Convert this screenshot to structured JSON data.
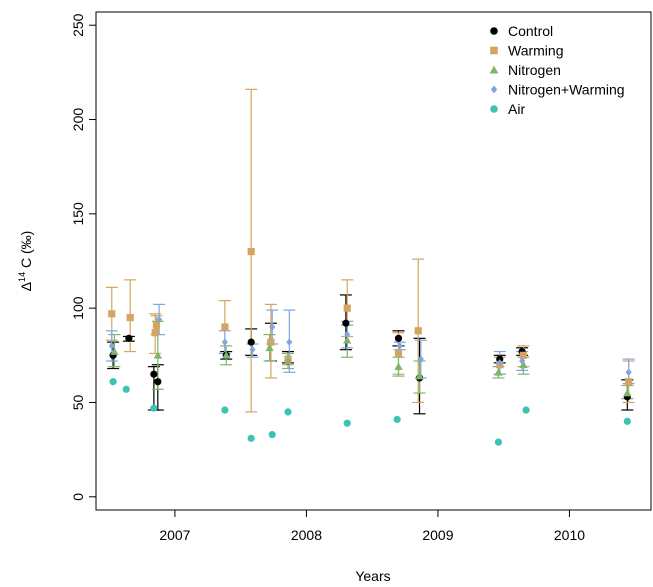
{
  "chart_data": {
    "type": "scatter",
    "xlabel": "Years",
    "ylabel": "Δ14C (‰)",
    "ylabel_parts": {
      "delta": "Δ",
      "superscript": "14",
      "rest": " C (‰)"
    },
    "x_unit": "decimal year",
    "xlim": [
      2006.4,
      2010.62
    ],
    "ylim": [
      -7,
      257
    ],
    "x_ticks": [
      2007,
      2008,
      2009,
      2010
    ],
    "x_tick_labels": [
      "2007",
      "2008",
      "2009",
      "2010"
    ],
    "y_ticks": [
      0,
      50,
      100,
      150,
      200,
      250
    ],
    "y_tick_labels": [
      "0",
      "50",
      "100",
      "150",
      "200",
      "250"
    ],
    "grid": false,
    "legend_position": "top-right",
    "series": [
      {
        "name": "Control",
        "marker": "circle",
        "color": "#000000",
        "points": [
          {
            "x": 2006.53,
            "y": 75,
            "lo": 68,
            "hi": 82
          },
          {
            "x": 2006.65,
            "y": 84,
            "lo": 82.5,
            "hi": 85
          },
          {
            "x": 2006.84,
            "y": 65,
            "lo": 46,
            "hi": 69
          },
          {
            "x": 2006.87,
            "y": 61,
            "lo": 46,
            "hi": 70
          },
          {
            "x": 2007.39,
            "y": 75,
            "lo": 73,
            "hi": 77
          },
          {
            "x": 2007.58,
            "y": 82,
            "lo": 75,
            "hi": 89
          },
          {
            "x": 2007.73,
            "y": 82,
            "lo": 72,
            "hi": 92
          },
          {
            "x": 2007.86,
            "y": 72,
            "lo": 71,
            "hi": 77
          },
          {
            "x": 2008.3,
            "y": 92,
            "lo": 78,
            "hi": 107
          },
          {
            "x": 2008.7,
            "y": 84,
            "lo": 80,
            "hi": 88
          },
          {
            "x": 2008.86,
            "y": 63,
            "lo": 44,
            "hi": 84
          },
          {
            "x": 2009.47,
            "y": 73,
            "lo": 71,
            "hi": 75
          },
          {
            "x": 2009.64,
            "y": 77,
            "lo": 75,
            "hi": 79
          },
          {
            "x": 2010.44,
            "y": 53,
            "lo": 46,
            "hi": 62
          }
        ]
      },
      {
        "name": "Warming",
        "marker": "square",
        "color": "#d4a463",
        "points": [
          {
            "x": 2006.52,
            "y": 97,
            "lo": 83,
            "hi": 111
          },
          {
            "x": 2006.66,
            "y": 95,
            "lo": 77,
            "hi": 115
          },
          {
            "x": 2006.85,
            "y": 87,
            "lo": 76,
            "hi": 97
          },
          {
            "x": 2006.86,
            "y": 91,
            "lo": 86,
            "hi": 96
          },
          {
            "x": 2007.38,
            "y": 90,
            "lo": 76,
            "hi": 104
          },
          {
            "x": 2007.58,
            "y": 130,
            "lo": 45,
            "hi": 216
          },
          {
            "x": 2007.73,
            "y": 82,
            "lo": 63,
            "hi": 102
          },
          {
            "x": 2007.86,
            "y": 73,
            "lo": 70,
            "hi": 76
          },
          {
            "x": 2008.31,
            "y": 100,
            "lo": 85,
            "hi": 115
          },
          {
            "x": 2008.7,
            "y": 76,
            "lo": 65,
            "hi": 87
          },
          {
            "x": 2008.85,
            "y": 88,
            "lo": 50,
            "hi": 126
          },
          {
            "x": 2009.47,
            "y": 70,
            "lo": 65,
            "hi": 74
          },
          {
            "x": 2009.65,
            "y": 75,
            "lo": 69,
            "hi": 80
          },
          {
            "x": 2010.45,
            "y": 61,
            "lo": 50,
            "hi": 72
          }
        ]
      },
      {
        "name": "Nitrogen",
        "marker": "triangle",
        "color": "#7fb56a",
        "points": [
          {
            "x": 2006.54,
            "y": 77,
            "lo": 69,
            "hi": 86
          },
          {
            "x": 2006.87,
            "y": 75,
            "lo": 57,
            "hi": 93
          },
          {
            "x": 2007.39,
            "y": 75,
            "lo": 70,
            "hi": 80
          },
          {
            "x": 2007.72,
            "y": 79,
            "lo": 72,
            "hi": 86
          },
          {
            "x": 2007.86,
            "y": 72,
            "lo": 68,
            "hi": 76
          },
          {
            "x": 2008.31,
            "y": 83,
            "lo": 74,
            "hi": 91
          },
          {
            "x": 2008.7,
            "y": 69,
            "lo": 64,
            "hi": 74
          },
          {
            "x": 2008.86,
            "y": 64,
            "lo": 55,
            "hi": 72
          },
          {
            "x": 2009.46,
            "y": 66,
            "lo": 63,
            "hi": 69
          },
          {
            "x": 2009.65,
            "y": 70,
            "lo": 65,
            "hi": 74
          },
          {
            "x": 2010.44,
            "y": 55,
            "lo": 52,
            "hi": 59
          }
        ]
      },
      {
        "name": "Nitrogen+Warming",
        "marker": "diamond",
        "color": "#7ea7e0",
        "points": [
          {
            "x": 2006.52,
            "y": 80,
            "lo": 72,
            "hi": 88
          },
          {
            "x": 2006.88,
            "y": 94,
            "lo": 86,
            "hi": 102
          },
          {
            "x": 2007.38,
            "y": 82,
            "lo": 76,
            "hi": 88
          },
          {
            "x": 2007.59,
            "y": 78,
            "lo": 74,
            "hi": 81
          },
          {
            "x": 2007.74,
            "y": 90,
            "lo": 81,
            "hi": 99
          },
          {
            "x": 2007.87,
            "y": 82,
            "lo": 66,
            "hi": 99
          },
          {
            "x": 2008.31,
            "y": 86,
            "lo": 79,
            "hi": 93
          },
          {
            "x": 2008.71,
            "y": 80,
            "lo": 78,
            "hi": 82
          },
          {
            "x": 2008.87,
            "y": 73,
            "lo": 63,
            "hi": 83
          },
          {
            "x": 2009.47,
            "y": 71,
            "lo": 65,
            "hi": 77
          },
          {
            "x": 2009.64,
            "y": 72,
            "lo": 67,
            "hi": 77
          },
          {
            "x": 2010.45,
            "y": 66,
            "lo": 60,
            "hi": 73
          }
        ]
      },
      {
        "name": "Air",
        "marker": "circle",
        "color": "#3bc4b4",
        "points": [
          {
            "x": 2006.53,
            "y": 61
          },
          {
            "x": 2006.63,
            "y": 57
          },
          {
            "x": 2006.84,
            "y": 47
          },
          {
            "x": 2007.38,
            "y": 46
          },
          {
            "x": 2007.58,
            "y": 31
          },
          {
            "x": 2007.74,
            "y": 33
          },
          {
            "x": 2007.86,
            "y": 45
          },
          {
            "x": 2008.31,
            "y": 39
          },
          {
            "x": 2008.69,
            "y": 41
          },
          {
            "x": 2009.46,
            "y": 29
          },
          {
            "x": 2009.67,
            "y": 46
          },
          {
            "x": 2010.44,
            "y": 40
          }
        ]
      }
    ]
  }
}
